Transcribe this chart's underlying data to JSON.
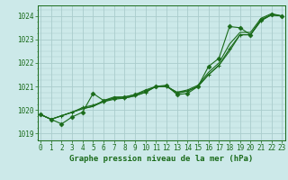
{
  "xlabel": "Graphe pression niveau de la mer (hPa)",
  "bg_color": "#cce9e9",
  "line_color": "#1a6b1a",
  "grid_color": "#aacccc",
  "x_hours": [
    0,
    1,
    2,
    3,
    4,
    5,
    6,
    7,
    8,
    9,
    10,
    11,
    12,
    13,
    14,
    15,
    16,
    17,
    18,
    19,
    20,
    21,
    22,
    23
  ],
  "series_main": [
    1019.8,
    1019.6,
    1019.4,
    1019.7,
    1019.9,
    1020.7,
    1020.4,
    1020.5,
    1020.55,
    1020.65,
    1020.8,
    1021.0,
    1021.05,
    1020.65,
    1020.7,
    1021.0,
    1021.85,
    1022.2,
    1023.55,
    1023.5,
    1023.2,
    1023.85,
    1024.05,
    1024.0
  ],
  "series_b": [
    1019.8,
    1019.6,
    1019.75,
    1019.9,
    1020.1,
    1020.2,
    1020.35,
    1020.45,
    1020.5,
    1020.6,
    1020.75,
    1021.0,
    1021.0,
    1020.75,
    1020.8,
    1021.0,
    1021.5,
    1021.9,
    1022.6,
    1023.2,
    1023.2,
    1023.8,
    1024.05,
    1024.0
  ],
  "series_c": [
    1019.8,
    1019.6,
    1019.75,
    1019.9,
    1020.05,
    1020.15,
    1020.4,
    1020.55,
    1020.55,
    1020.65,
    1020.85,
    1021.0,
    1021.0,
    1020.75,
    1020.85,
    1021.05,
    1021.6,
    1022.0,
    1022.8,
    1023.3,
    1023.3,
    1023.9,
    1024.1,
    1024.0
  ],
  "series_d": [
    1019.8,
    1019.6,
    1019.75,
    1019.9,
    1020.05,
    1020.15,
    1020.35,
    1020.5,
    1020.5,
    1020.6,
    1020.75,
    1021.0,
    1021.0,
    1020.7,
    1020.8,
    1021.0,
    1021.5,
    1021.9,
    1022.5,
    1023.2,
    1023.2,
    1023.8,
    1024.05,
    1024.0
  ],
  "ylim_min": 1018.7,
  "ylim_max": 1024.45,
  "yticks": [
    1019,
    1020,
    1021,
    1022,
    1023,
    1024
  ],
  "xticks": [
    0,
    1,
    2,
    3,
    4,
    5,
    6,
    7,
    8,
    9,
    10,
    11,
    12,
    13,
    14,
    15,
    16,
    17,
    18,
    19,
    20,
    21,
    22,
    23
  ]
}
